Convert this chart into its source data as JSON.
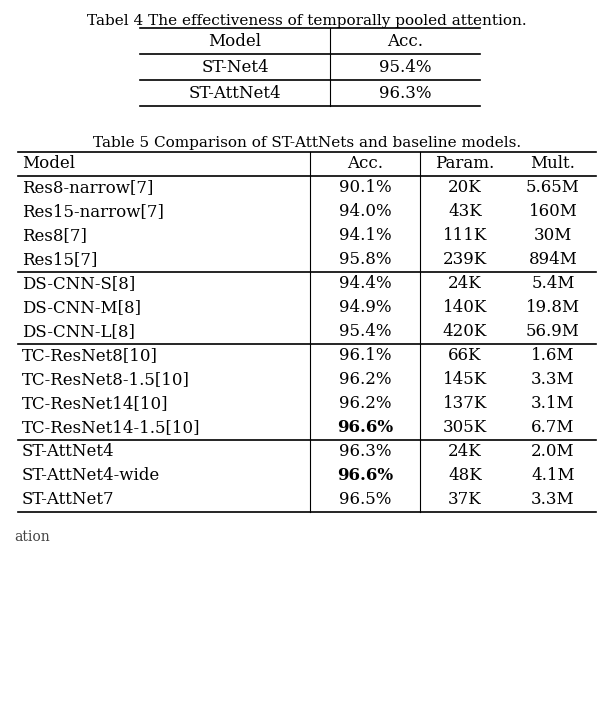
{
  "table4_title": "Tabel 4 The effectiveness of temporally pooled attention.",
  "table4_headers": [
    "Model",
    "Acc."
  ],
  "table4_rows": [
    [
      "ST-Net4",
      "95.4%"
    ],
    [
      "ST-AttNet4",
      "96.3%"
    ]
  ],
  "table5_title": "Table 5 Comparison of ST-AttNets and baseline models.",
  "table5_headers": [
    "Model",
    "Acc.",
    "Param.",
    "Mult."
  ],
  "table5_rows": [
    [
      "Res8-narrow[7]",
      "90.1%",
      "20K",
      "5.65M"
    ],
    [
      "Res15-narrow[7]",
      "94.0%",
      "43K",
      "160M"
    ],
    [
      "Res8[7]",
      "94.1%",
      "111K",
      "30M"
    ],
    [
      "Res15[7]",
      "95.8%",
      "239K",
      "894M"
    ],
    [
      "DS-CNN-S[8]",
      "94.4%",
      "24K",
      "5.4M"
    ],
    [
      "DS-CNN-M[8]",
      "94.9%",
      "140K",
      "19.8M"
    ],
    [
      "DS-CNN-L[8]",
      "95.4%",
      "420K",
      "56.9M"
    ],
    [
      "TC-ResNet8[10]",
      "96.1%",
      "66K",
      "1.6M"
    ],
    [
      "TC-ResNet8-1.5[10]",
      "96.2%",
      "145K",
      "3.3M"
    ],
    [
      "TC-ResNet14[10]",
      "96.2%",
      "137K",
      "3.1M"
    ],
    [
      "TC-ResNet14-1.5[10]",
      "96.6%",
      "305K",
      "6.7M"
    ],
    [
      "ST-AttNet4",
      "96.3%",
      "24K",
      "2.0M"
    ],
    [
      "ST-AttNet4-wide",
      "96.6%",
      "48K",
      "4.1M"
    ],
    [
      "ST-AttNet7",
      "96.5%",
      "37K",
      "3.3M"
    ]
  ],
  "table5_bold": [
    [
      10,
      1
    ],
    [
      12,
      1
    ]
  ],
  "table5_group_separators": [
    3,
    6,
    10
  ],
  "bg_color": "#ffffff",
  "text_color": "#000000",
  "font_size": 11,
  "title_font_size": 11
}
